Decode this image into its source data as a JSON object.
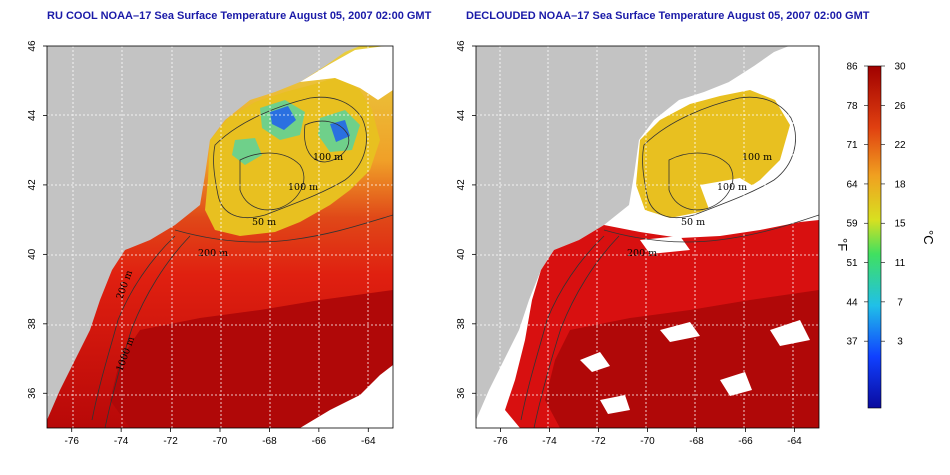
{
  "panels": [
    {
      "title": "RU COOL NOAA–17 Sea Surface Temperature August 05, 2007 02:00 GMT",
      "contour_labels": [
        "100 m",
        "100 m",
        "50 m",
        "200 m",
        "200 m",
        "1000 m"
      ]
    },
    {
      "title": "DECLOUDED NOAA–17 Sea Surface Temperature August 05, 2007 02:00 GMT",
      "contour_labels": [
        "100 m",
        "100 m",
        "50 m",
        "200 m"
      ]
    }
  ],
  "x_ticks": [
    "-76",
    "-74",
    "-72",
    "-70",
    "-68",
    "-66",
    "-64"
  ],
  "y_ticks": [
    "46",
    "44",
    "42",
    "40",
    "38",
    "36"
  ],
  "colorbar": {
    "fahrenheit_ticks": [
      "86",
      "78",
      "71",
      "64",
      "59",
      "51",
      "44",
      "37"
    ],
    "celsius_ticks": [
      "30",
      "26",
      "22",
      "18",
      "15",
      "11",
      "7",
      "3"
    ],
    "fahrenheit_unit": "°F",
    "celsius_unit": "°C"
  },
  "colors": {
    "land": "#c3c3c3",
    "cloud_mask": "#ffffff",
    "warm": "#d81010",
    "hot": "#b00000",
    "cool": "#e8c020",
    "cold": "#4fc0d0",
    "title": "#1a1aa8"
  }
}
